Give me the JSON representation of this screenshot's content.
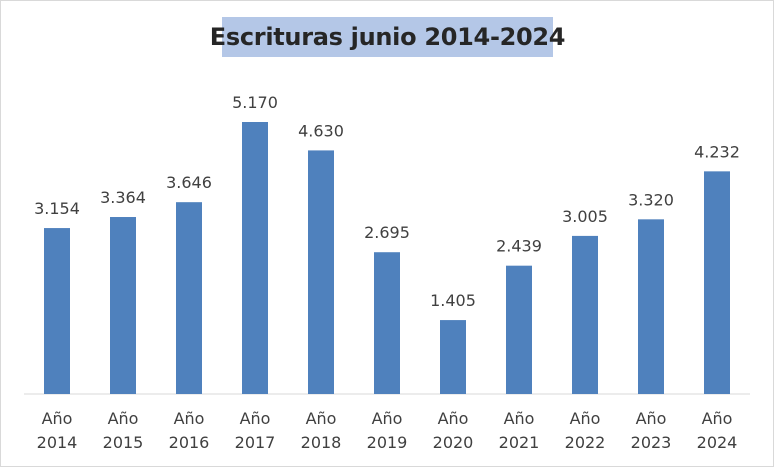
{
  "chart_data": {
    "type": "bar",
    "title": "Escrituras junio 2014-2024",
    "categories": [
      [
        "Año",
        "2014"
      ],
      [
        "Año",
        "2015"
      ],
      [
        "Año",
        "2016"
      ],
      [
        "Año",
        "2017"
      ],
      [
        "Año",
        "2018"
      ],
      [
        "Año",
        "2019"
      ],
      [
        "Año",
        "2020"
      ],
      [
        "Año",
        "2021"
      ],
      [
        "Año",
        "2022"
      ],
      [
        "Año",
        "2023"
      ],
      [
        "Año",
        "2024"
      ]
    ],
    "values": [
      3154,
      3364,
      3646,
      5170,
      4630,
      2695,
      1405,
      2439,
      3005,
      3320,
      4232
    ],
    "data_labels": [
      "3.154",
      "3.364",
      "3.646",
      "5.170",
      "4.630",
      "2.695",
      "1.405",
      "2.439",
      "3.005",
      "3.320",
      "4.232"
    ],
    "ylim": [
      0,
      5170
    ],
    "bar_color": "#4f81bd",
    "title_bg_color": "#b4c7e7",
    "grid": false,
    "legend": "none"
  }
}
